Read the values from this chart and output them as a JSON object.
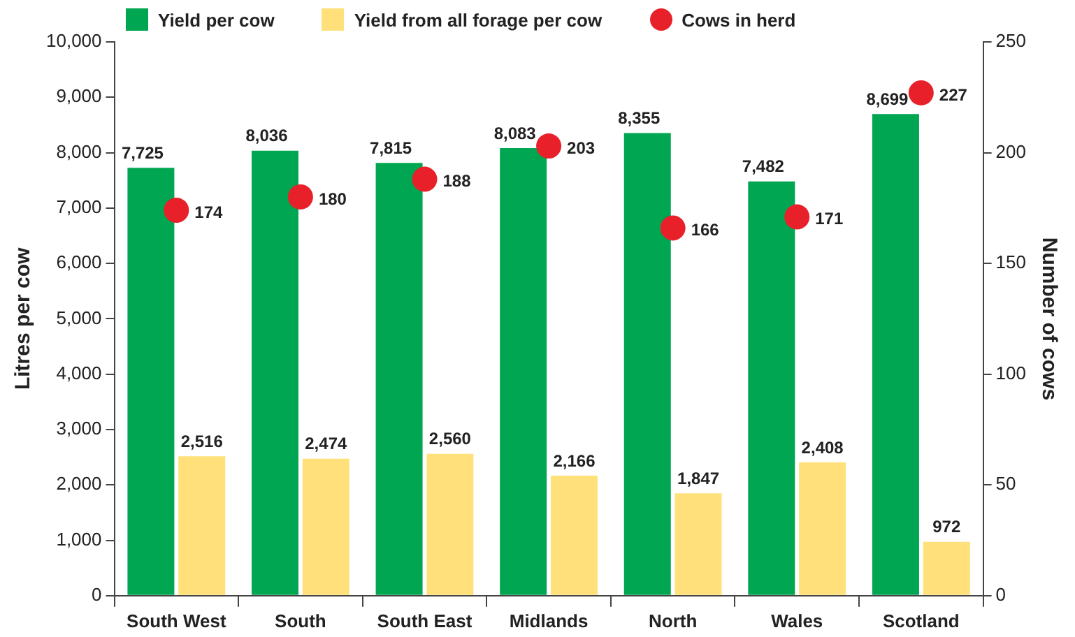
{
  "chart_data": {
    "type": "bar",
    "categories": [
      "South West",
      "South",
      "South East",
      "Midlands",
      "North",
      "Wales",
      "Scotland"
    ],
    "ylabel": "Litres per cow",
    "y2label": "Number of cows",
    "series": [
      {
        "name": "Yield per cow",
        "color": "#00a651",
        "values": [
          7725,
          8036,
          7815,
          8083,
          8355,
          7482,
          8699
        ],
        "value_labels": [
          "7,725",
          "8,036",
          "7,815",
          "8,083",
          "8,355",
          "7,482",
          "8,699"
        ]
      },
      {
        "name": "Yield from all forage per cow",
        "color": "#ffe07a",
        "values": [
          2516,
          2474,
          2560,
          2166,
          1847,
          2408,
          972
        ],
        "value_labels": [
          "2,516",
          "2,474",
          "2,560",
          "2,166",
          "1,847",
          "2,408",
          "972"
        ]
      },
      {
        "name": "Cows in herd",
        "type": "scatter",
        "axis": "y2",
        "color": "#e8202a",
        "x": [
          "South West",
          "South",
          "South East",
          "Midlands",
          "North",
          "Wales",
          "Scotland"
        ],
        "values": [
          174,
          180,
          188,
          203,
          166,
          171,
          227
        ],
        "value_labels": [
          "174",
          "180",
          "188",
          "203",
          "166",
          "171",
          "227"
        ]
      }
    ],
    "ylim": [
      0,
      10000
    ],
    "yticks": [
      0,
      {
        "value": 1000,
        "label": "1,000"
      },
      {
        "value": 2000,
        "label": "2,000"
      },
      {
        "value": 3000,
        "label": "3,000"
      },
      {
        "value": 4000,
        "label": "4,000"
      },
      {
        "value": 5000,
        "label": "5,000"
      },
      {
        "value": 6000,
        "label": "6,000"
      },
      {
        "value": 7000,
        "label": "7,000"
      },
      {
        "value": 8000,
        "label": "8,000"
      },
      {
        "value": 9000,
        "label": "9,000"
      },
      {
        "value": 10000,
        "label": "10,000"
      }
    ],
    "y2lim": [
      0,
      250
    ],
    "y2ticks": [
      0,
      50,
      100,
      150,
      200,
      250
    ],
    "legend": "top left",
    "grid": false,
    "marker": "circle"
  }
}
